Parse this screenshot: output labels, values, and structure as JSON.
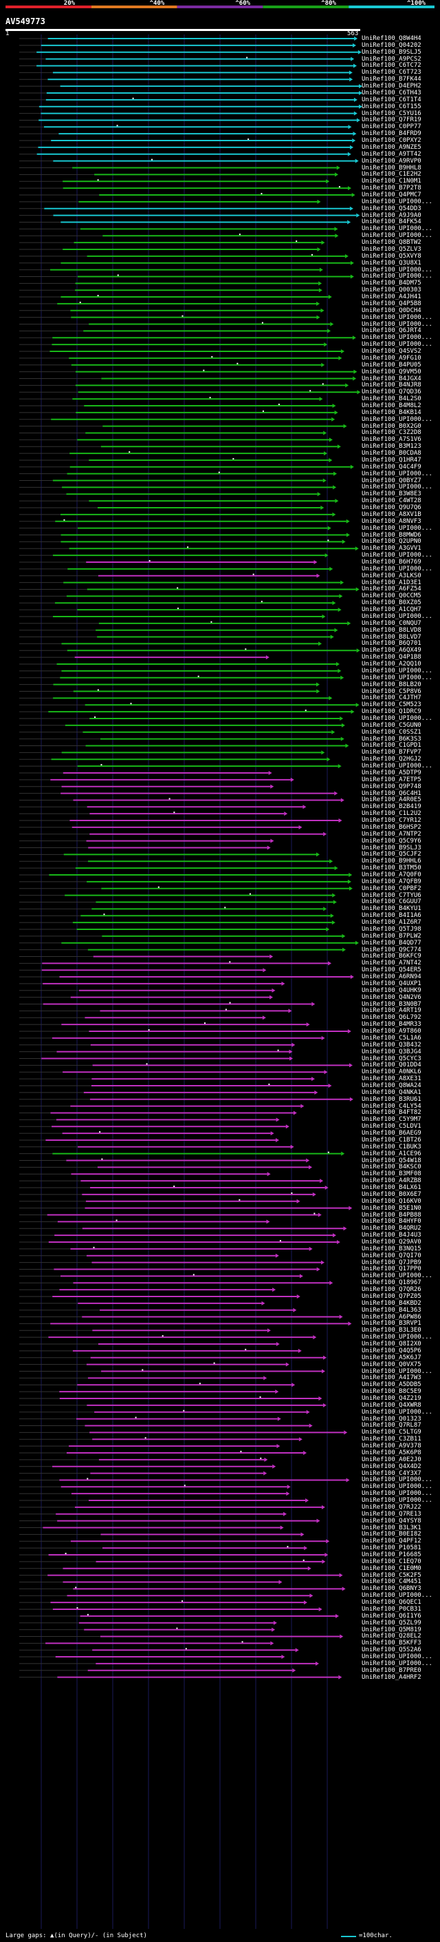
{
  "legend": {
    "labels": [
      "20%",
      "^40%",
      "^60%",
      "^80%",
      "^100%"
    ],
    "colors": [
      "#e0202a",
      "#e07820",
      "#7a2aa0",
      "#18a018",
      "#19c8d2"
    ]
  },
  "query": {
    "name": "AV549773",
    "start": "1",
    "end": "563"
  },
  "colors": {
    "cyan": "#19c8d2",
    "green": "#18b818",
    "magenta": "#c030c0"
  },
  "hits": [
    {
      "label": "UniRef100_Q8W4H4",
      "c": "c"
    },
    {
      "label": "UniRef100_Q04202",
      "c": "c"
    },
    {
      "label": "UniRef100_B9SLJ5",
      "c": "c"
    },
    {
      "label": "UniRef100_A9PCS2",
      "c": "c"
    },
    {
      "label": "UniRef100_C6TC72",
      "c": "c"
    },
    {
      "label": "UniRef100_C6T723",
      "c": "c"
    },
    {
      "label": "UniRef100_B7FK44",
      "c": "c"
    },
    {
      "label": "UniRef100_D4EPH2",
      "c": "c"
    },
    {
      "label": "UniRef100_C6TH43",
      "c": "c"
    },
    {
      "label": "UniRef100_C6T1T4",
      "c": "c"
    },
    {
      "label": "UniRef100_C6T155",
      "c": "c"
    },
    {
      "label": "UniRef100_C5YU16",
      "c": "c"
    },
    {
      "label": "UniRef100_Q7FR19",
      "c": "c"
    },
    {
      "label": "UniRef100_C0PP77",
      "c": "c"
    },
    {
      "label": "UniRef100_B4FRD9",
      "c": "c"
    },
    {
      "label": "UniRef100_C0PXY2",
      "c": "c"
    },
    {
      "label": "UniRef100_A9NZE5",
      "c": "c"
    },
    {
      "label": "UniRef100_A9TT42",
      "c": "c"
    },
    {
      "label": "UniRef100_A9RVP0",
      "c": "c"
    },
    {
      "label": "UniRef100_B9HHL8",
      "c": "g"
    },
    {
      "label": "UniRef100_C1E2H2",
      "c": "g"
    },
    {
      "label": "UniRef100_C1N0M1",
      "c": "g"
    },
    {
      "label": "UniRef100_B7P2T8",
      "c": "g"
    },
    {
      "label": "UniRef100_Q4PMC7",
      "c": "g"
    },
    {
      "label": "UniRef100_UPI000...",
      "c": "g"
    },
    {
      "label": "UniRef100_Q54DD3",
      "c": "c"
    },
    {
      "label": "UniRef100_A9J9A0",
      "c": "c"
    },
    {
      "label": "UniRef100_B4FK54",
      "c": "c"
    },
    {
      "label": "UniRef100_UPI000...",
      "c": "g"
    },
    {
      "label": "UniRef100_UPI000...",
      "c": "g"
    },
    {
      "label": "UniRef100_Q8BTW2",
      "c": "g"
    },
    {
      "label": "UniRef100_Q5ZLV3",
      "c": "g"
    },
    {
      "label": "UniRef100_Q5XVY8",
      "c": "g"
    },
    {
      "label": "UniRef100_Q3U8X1",
      "c": "g"
    },
    {
      "label": "UniRef100_UPI000...",
      "c": "g"
    },
    {
      "label": "UniRef100_UPI000...",
      "c": "g"
    },
    {
      "label": "UniRef100_B4DM75",
      "c": "g"
    },
    {
      "label": "UniRef100_Q00303",
      "c": "g"
    },
    {
      "label": "UniRef100_A4JH41",
      "c": "g"
    },
    {
      "label": "UniRef100_Q4P5B8",
      "c": "g"
    },
    {
      "label": "UniRef100_Q0DCH4",
      "c": "g"
    },
    {
      "label": "UniRef100_UPI000...",
      "c": "g"
    },
    {
      "label": "UniRef100_UPI000...",
      "c": "g"
    },
    {
      "label": "UniRef100_Q6JRT4",
      "c": "g"
    },
    {
      "label": "UniRef100_UPI000...",
      "c": "g"
    },
    {
      "label": "UniRef100_UPI000...",
      "c": "g"
    },
    {
      "label": "UniRef100_Q4SVS2",
      "c": "g"
    },
    {
      "label": "UniRef100_A9FG10",
      "c": "g"
    },
    {
      "label": "UniRef100_B4PU05",
      "c": "g"
    },
    {
      "label": "UniRef100_Q9VM50",
      "c": "g"
    },
    {
      "label": "UniRef100_B4JGX4",
      "c": "g"
    },
    {
      "label": "UniRef100_B4NJR8",
      "c": "g"
    },
    {
      "label": "UniRef100_Q7QD36",
      "c": "g"
    },
    {
      "label": "UniRef100_B4L2S0",
      "c": "g"
    },
    {
      "label": "UniRef100_B4M8L2",
      "c": "g"
    },
    {
      "label": "UniRef100_B4KB14",
      "c": "g"
    },
    {
      "label": "UniRef100_UPI000...",
      "c": "g"
    },
    {
      "label": "UniRef100_B0X2G0",
      "c": "g"
    },
    {
      "label": "UniRef100_C3Z2D8",
      "c": "g"
    },
    {
      "label": "UniRef100_A7S1V6",
      "c": "g"
    },
    {
      "label": "UniRef100_B3M123",
      "c": "g"
    },
    {
      "label": "UniRef100_B0CDA8",
      "c": "g"
    },
    {
      "label": "UniRef100_Q1HR47",
      "c": "g"
    },
    {
      "label": "UniRef100_Q4C4F9",
      "c": "g"
    },
    {
      "label": "UniRef100_UPI000...",
      "c": "g"
    },
    {
      "label": "UniRef100_Q0BYZ7",
      "c": "g"
    },
    {
      "label": "UniRef100_UPI000...",
      "c": "g"
    },
    {
      "label": "UniRef100_B3W8E3",
      "c": "g"
    },
    {
      "label": "UniRef100_C4WT28",
      "c": "g"
    },
    {
      "label": "UniRef100_Q9U7Q6",
      "c": "g"
    },
    {
      "label": "UniRef100_A8XV1B",
      "c": "g"
    },
    {
      "label": "UniRef100_A8NVF3",
      "c": "g"
    },
    {
      "label": "UniRef100_UPI000...",
      "c": "g"
    },
    {
      "label": "UniRef100_B8MWD6",
      "c": "g"
    },
    {
      "label": "UniRef100_Q2UPN0",
      "c": "g"
    },
    {
      "label": "UniRef100_A3GVV1",
      "c": "g"
    },
    {
      "label": "UniRef100_UPI000...",
      "c": "g"
    },
    {
      "label": "UniRef100_B6H769",
      "c": "m"
    },
    {
      "label": "UniRef100_UPI000...",
      "c": "g"
    },
    {
      "label": "UniRef100_A3LKS0",
      "c": "m"
    },
    {
      "label": "UniRef100_A1D3E1",
      "c": "g"
    },
    {
      "label": "UniRef100_A6FZ54",
      "c": "g"
    },
    {
      "label": "UniRef100_Q0CCM5",
      "c": "g"
    },
    {
      "label": "UniRef100_B0XZ05",
      "c": "g"
    },
    {
      "label": "UniRef100_A1CQH7",
      "c": "g"
    },
    {
      "label": "UniRef100_UPI000...",
      "c": "g"
    },
    {
      "label": "UniRef100_C0NQU7",
      "c": "g"
    },
    {
      "label": "UniRef100_B8LVD8",
      "c": "g"
    },
    {
      "label": "UniRef100_B8LVD7",
      "c": "g"
    },
    {
      "label": "UniRef100_B6Q701",
      "c": "g"
    },
    {
      "label": "UniRef100_A6QX49",
      "c": "g"
    },
    {
      "label": "UniRef100_Q4P1B8",
      "c": "m"
    },
    {
      "label": "UniRef100_A2QQ10",
      "c": "g"
    },
    {
      "label": "UniRef100_UPI000...",
      "c": "g"
    },
    {
      "label": "UniRef100_UPI000...",
      "c": "g"
    },
    {
      "label": "UniRef100_B8LB20",
      "c": "g"
    },
    {
      "label": "UniRef100_C5P8V6",
      "c": "g"
    },
    {
      "label": "UniRef100_C4JTH7",
      "c": "g"
    },
    {
      "label": "UniRef100_C5M523",
      "c": "g"
    },
    {
      "label": "UniRef100_Q1DRC9",
      "c": "g"
    },
    {
      "label": "UniRef100_UPI000...",
      "c": "g"
    },
    {
      "label": "UniRef100_C5GUN0",
      "c": "g"
    },
    {
      "label": "UniRef100_C0SSZ1",
      "c": "g"
    },
    {
      "label": "UniRef100_B6K3S3",
      "c": "g"
    },
    {
      "label": "UniRef100_C1GPD1",
      "c": "g"
    },
    {
      "label": "UniRef100_B7FVP7",
      "c": "g"
    },
    {
      "label": "UniRef100_Q2HGJ2",
      "c": "g"
    },
    {
      "label": "UniRef100_UPI000...",
      "c": "g"
    },
    {
      "label": "UniRef100_A5DTP9",
      "c": "m"
    },
    {
      "label": "UniRef100_A7ETP5",
      "c": "m"
    },
    {
      "label": "UniRef100_Q9P748",
      "c": "m"
    },
    {
      "label": "UniRef100_Q6C4H1",
      "c": "m"
    },
    {
      "label": "UniRef100_A4R0E5",
      "c": "m"
    },
    {
      "label": "UniRef100_B2B419",
      "c": "m"
    },
    {
      "label": "UniRef100_C1L2U2",
      "c": "m"
    },
    {
      "label": "UniRef100_C7YR12",
      "c": "m"
    },
    {
      "label": "UniRef100_B6HSP2",
      "c": "m"
    },
    {
      "label": "UniRef100_A7NTP2",
      "c": "m"
    },
    {
      "label": "UniRef100_Q5C9Y6",
      "c": "m"
    },
    {
      "label": "UniRef100_B9SLJ3",
      "c": "m"
    },
    {
      "label": "UniRef100_Q5CJF2",
      "c": "g"
    },
    {
      "label": "UniRef100_B9HHL6",
      "c": "g"
    },
    {
      "label": "UniRef100_B3TM50",
      "c": "g"
    },
    {
      "label": "UniRef100_A7Q0F0",
      "c": "g"
    },
    {
      "label": "UniRef100_A7QFB9",
      "c": "g"
    },
    {
      "label": "UniRef100_C0PBF2",
      "c": "g"
    },
    {
      "label": "UniRef100_C7TYU6",
      "c": "g"
    },
    {
      "label": "UniRef100_C6GUU7",
      "c": "g"
    },
    {
      "label": "UniRef100_B4KYU1",
      "c": "g"
    },
    {
      "label": "UniRef100_B4I1A6",
      "c": "g"
    },
    {
      "label": "UniRef100_A1Z6R7",
      "c": "g"
    },
    {
      "label": "UniRef100_Q5TJ98",
      "c": "g"
    },
    {
      "label": "UniRef100_B7PLW2",
      "c": "g"
    },
    {
      "label": "UniRef100_B4QD77",
      "c": "g"
    },
    {
      "label": "UniRef100_Q9C774",
      "c": "g"
    },
    {
      "label": "UniRef100_B6KFC9",
      "c": "m"
    },
    {
      "label": "UniRef100_A7NT42",
      "c": "m"
    },
    {
      "label": "UniRef100_Q54ER5",
      "c": "m"
    },
    {
      "label": "UniRef100_A6RN94",
      "c": "m"
    },
    {
      "label": "UniRef100_Q4UXP1",
      "c": "m"
    },
    {
      "label": "UniRef100_Q4UHK9",
      "c": "m"
    },
    {
      "label": "UniRef100_Q4N2V6",
      "c": "m"
    },
    {
      "label": "UniRef100_B3N0B7",
      "c": "m"
    },
    {
      "label": "UniRef100_A4RT19",
      "c": "m"
    },
    {
      "label": "UniRef100_Q6L792",
      "c": "m"
    },
    {
      "label": "UniRef100_B4MR33",
      "c": "m"
    },
    {
      "label": "UniRef100_A9T860",
      "c": "m"
    },
    {
      "label": "UniRef100_C5L1A6",
      "c": "m"
    },
    {
      "label": "UniRef100_Q3B432",
      "c": "m"
    },
    {
      "label": "UniRef100_Q3BJG4",
      "c": "m"
    },
    {
      "label": "UniRef100_Q5CYC3",
      "c": "m"
    },
    {
      "label": "UniRef100_Q01DD4",
      "c": "m"
    },
    {
      "label": "UniRef100_A0NKL6",
      "c": "m"
    },
    {
      "label": "UniRef100_A8XE31",
      "c": "m"
    },
    {
      "label": "UniRef100_Q8WA24",
      "c": "m"
    },
    {
      "label": "UniRef100_Q4NKA1",
      "c": "m"
    },
    {
      "label": "UniRef100_B3RU61",
      "c": "m"
    },
    {
      "label": "UniRef100_C4LY54",
      "c": "m"
    },
    {
      "label": "UniRef100_B4FT82",
      "c": "m"
    },
    {
      "label": "UniRef100_C5Y9M7",
      "c": "m"
    },
    {
      "label": "UniRef100_C5LDV1",
      "c": "m"
    },
    {
      "label": "UniRef100_B6AEG9",
      "c": "m"
    },
    {
      "label": "UniRef100_C1BT26",
      "c": "m"
    },
    {
      "label": "UniRef100_C1BUK3",
      "c": "m"
    },
    {
      "label": "UniRef100_A1CE96",
      "c": "g"
    },
    {
      "label": "UniRef100_Q54W18",
      "c": "m"
    },
    {
      "label": "UniRef100_B4KSC0",
      "c": "m"
    },
    {
      "label": "UniRef100_B3MF08",
      "c": "m"
    },
    {
      "label": "UniRef100_A4RZB8",
      "c": "m"
    },
    {
      "label": "UniRef100_B4LX61",
      "c": "m"
    },
    {
      "label": "UniRef100_B0X6E7",
      "c": "m"
    },
    {
      "label": "UniRef100_Q16KV0",
      "c": "m"
    },
    {
      "label": "UniRef100_B5E1N0",
      "c": "m"
    },
    {
      "label": "UniRef100_B4PB88",
      "c": "m"
    },
    {
      "label": "UniRef100_B4HYF0",
      "c": "m"
    },
    {
      "label": "UniRef100_B4QRU2",
      "c": "m"
    },
    {
      "label": "UniRef100_B4J4U3",
      "c": "m"
    },
    {
      "label": "UniRef100_Q29AV0",
      "c": "m"
    },
    {
      "label": "UniRef100_B3NQ15",
      "c": "m"
    },
    {
      "label": "UniRef100_Q7QI70",
      "c": "m"
    },
    {
      "label": "UniRef100_Q7JPB9",
      "c": "m"
    },
    {
      "label": "UniRef100_Q17PP0",
      "c": "m"
    },
    {
      "label": "UniRef100_UPI000...",
      "c": "m"
    },
    {
      "label": "UniRef100_Q18967",
      "c": "m"
    },
    {
      "label": "UniRef100_Q7QR26",
      "c": "m"
    },
    {
      "label": "UniRef100_Q7PZ05",
      "c": "m"
    },
    {
      "label": "UniRef100_B4KBD2",
      "c": "m"
    },
    {
      "label": "UniRef100_B4L363",
      "c": "m"
    },
    {
      "label": "UniRef100_A6PW86",
      "c": "m"
    },
    {
      "label": "UniRef100_B3RVP1",
      "c": "m"
    },
    {
      "label": "UniRef100_B3L3E0",
      "c": "m"
    },
    {
      "label": "UniRef100_UPI000...",
      "c": "m"
    },
    {
      "label": "UniRef100_Q8I2X0",
      "c": "m"
    },
    {
      "label": "UniRef100_Q4Q5P6",
      "c": "m"
    },
    {
      "label": "UniRef100_A5K6J7",
      "c": "m"
    },
    {
      "label": "UniRef100_Q0VX75",
      "c": "m"
    },
    {
      "label": "UniRef100_UPI000...",
      "c": "m"
    },
    {
      "label": "UniRef100_A4I7W3",
      "c": "m"
    },
    {
      "label": "UniRef100_A5DDB5",
      "c": "m"
    },
    {
      "label": "UniRef100_B8C5E9",
      "c": "m"
    },
    {
      "label": "UniRef100_Q4Z219",
      "c": "m"
    },
    {
      "label": "UniRef100_Q4XWR8",
      "c": "m"
    },
    {
      "label": "UniRef100_UPI000...",
      "c": "m"
    },
    {
      "label": "UniRef100_Q01323",
      "c": "m"
    },
    {
      "label": "UniRef100_Q7RL87",
      "c": "m"
    },
    {
      "label": "UniRef100_C5LTG9",
      "c": "m"
    },
    {
      "label": "UniRef100_C3ZB11",
      "c": "m"
    },
    {
      "label": "UniRef100_A9V378",
      "c": "m"
    },
    {
      "label": "UniRef100_A5K6P8",
      "c": "m"
    },
    {
      "label": "UniRef100_A0E2J0",
      "c": "m"
    },
    {
      "label": "UniRef100_Q4X4D2",
      "c": "m"
    },
    {
      "label": "UniRef100_C4Y3X7",
      "c": "m"
    },
    {
      "label": "UniRef100_UPI000...",
      "c": "m"
    },
    {
      "label": "UniRef100_UPI000...",
      "c": "m"
    },
    {
      "label": "UniRef100_UPI000...",
      "c": "m"
    },
    {
      "label": "UniRef100_UPI000...",
      "c": "m"
    },
    {
      "label": "UniRef100_Q7RJ22",
      "c": "m"
    },
    {
      "label": "UniRef100_Q7RE13",
      "c": "m"
    },
    {
      "label": "UniRef100_Q4YSY8",
      "c": "m"
    },
    {
      "label": "UniRef100_B3L3K1",
      "c": "m"
    },
    {
      "label": "UniRef100_B0EI82",
      "c": "m"
    },
    {
      "label": "UniRef100_Q4PF12",
      "c": "m"
    },
    {
      "label": "UniRef100_P10581",
      "c": "m"
    },
    {
      "label": "UniRef100_P16685",
      "c": "m"
    },
    {
      "label": "UniRef100_C1EQ70",
      "c": "m"
    },
    {
      "label": "UniRef100_C1E0M0",
      "c": "m"
    },
    {
      "label": "UniRef100_C5K2F5",
      "c": "m"
    },
    {
      "label": "UniRef100_C4M451",
      "c": "m"
    },
    {
      "label": "UniRef100_Q6BNY3",
      "c": "m"
    },
    {
      "label": "UniRef100_UPI000...",
      "c": "m"
    },
    {
      "label": "UniRef100_Q6QEC1",
      "c": "m"
    },
    {
      "label": "UniRef100_P0CB31",
      "c": "m"
    },
    {
      "label": "UniRef100_Q6I1Y6",
      "c": "m"
    },
    {
      "label": "UniRef100_Q5ZL99",
      "c": "m"
    },
    {
      "label": "UniRef100_Q5M819",
      "c": "m"
    },
    {
      "label": "UniRef100_Q28EL2",
      "c": "m"
    },
    {
      "label": "UniRef100_B5KFF3",
      "c": "m"
    },
    {
      "label": "UniRef100_Q5S2A6",
      "c": "m"
    },
    {
      "label": "UniRef100_UPI000...",
      "c": "m"
    },
    {
      "label": "UniRef100_UPI000...",
      "c": "m"
    },
    {
      "label": "UniRef100_B7PRE0",
      "c": "m"
    },
    {
      "label": "UniRef100_A4HRF2",
      "c": "m"
    }
  ],
  "footer": {
    "gaps_text": "Large gaps: ▲(in Query)/- (in Subject)",
    "scale_text": "=100char."
  }
}
